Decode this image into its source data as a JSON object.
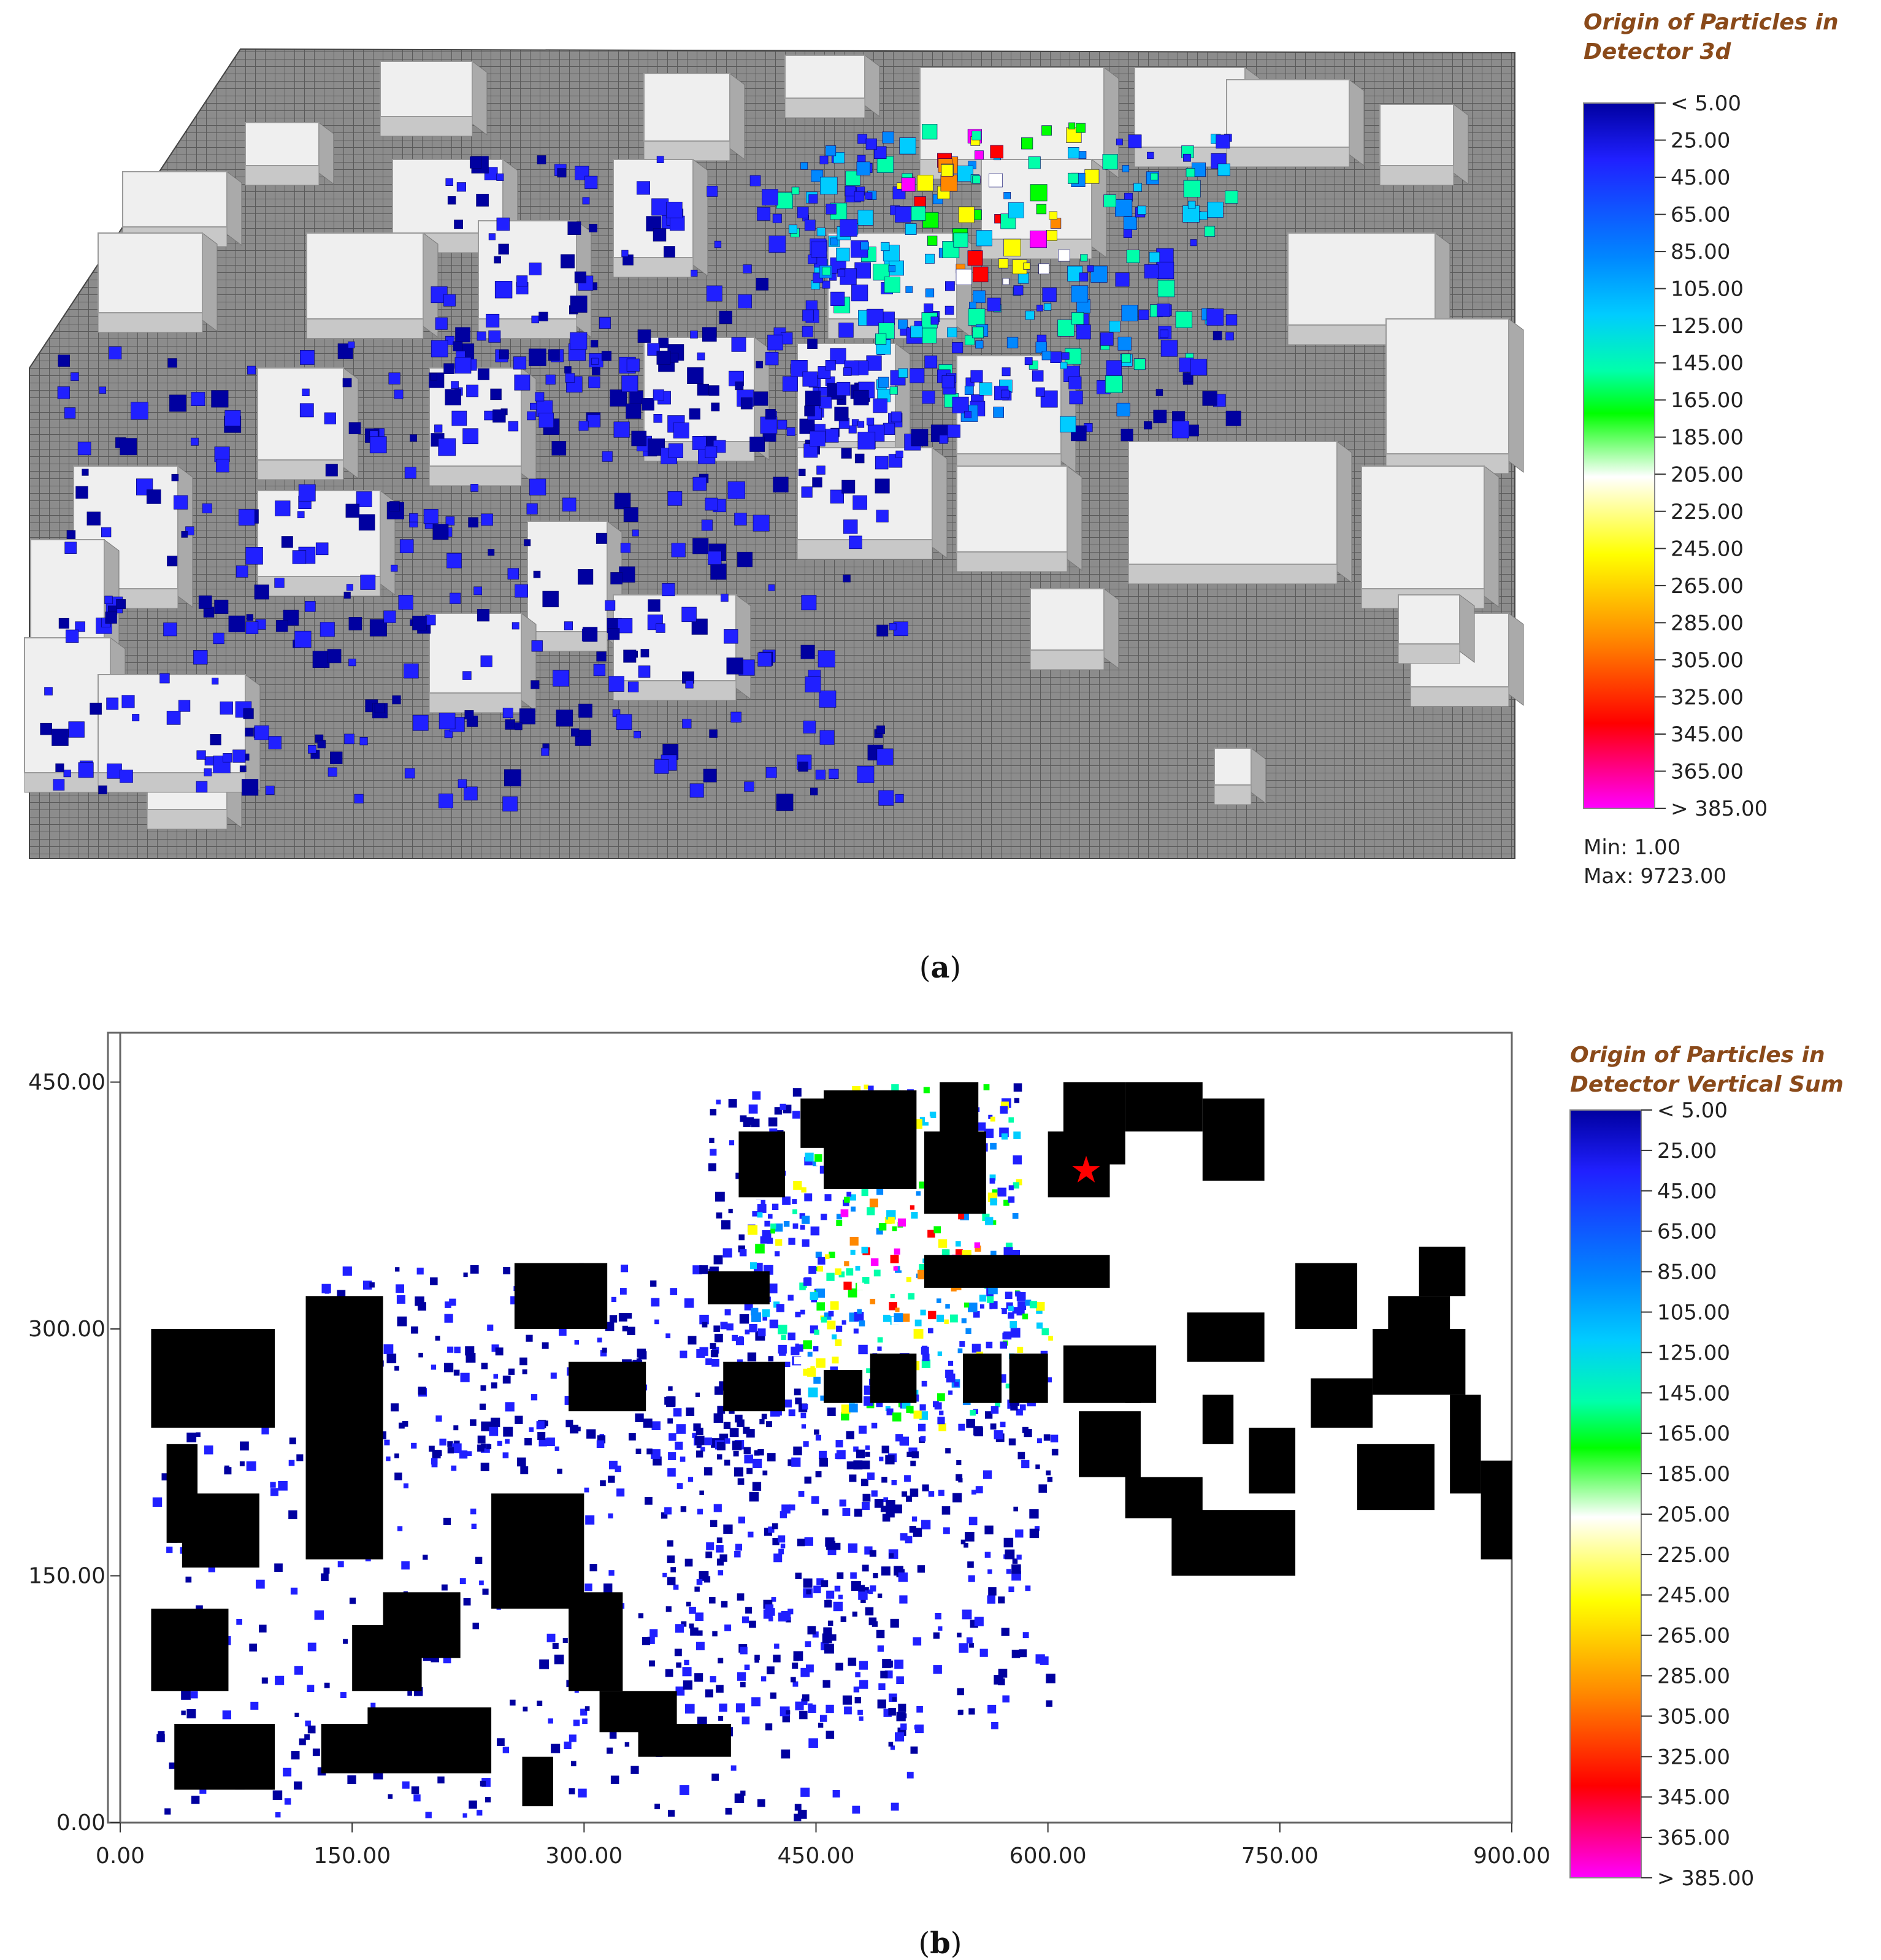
{
  "panel_a": {
    "caption_letter": "a",
    "legend": {
      "title_line1": "Origin of Particles in",
      "title_line2": "Detector 3d",
      "labels": [
        "< 5.00",
        "25.00",
        "45.00",
        "65.00",
        "85.00",
        "105.00",
        "125.00",
        "145.00",
        "165.00",
        "185.00",
        "205.00",
        "225.00",
        "245.00",
        "265.00",
        "285.00",
        "305.00",
        "325.00",
        "345.00",
        "365.00",
        "> 385.00"
      ],
      "min_text": "Min: 1.00",
      "max_text": "Max: 9723.00"
    }
  },
  "panel_b": {
    "caption_letter": "b",
    "legend": {
      "title_line1": "Origin of Particles in",
      "title_line2": "Detector Vertical Sum",
      "labels": [
        "< 5.00",
        "25.00",
        "45.00",
        "65.00",
        "85.00",
        "105.00",
        "125.00",
        "145.00",
        "165.00",
        "185.00",
        "205.00",
        "225.00",
        "245.00",
        "265.00",
        "285.00",
        "305.00",
        "325.00",
        "345.00",
        "365.00",
        "> 385.00"
      ]
    }
  },
  "colorscale": [
    "#0000a0",
    "#2020ff",
    "#0088ff",
    "#00ccff",
    "#00ffaa",
    "#00ff00",
    "#ffffff",
    "#ffff00",
    "#ff8800",
    "#ff0000",
    "#ff00ff"
  ],
  "chart_data": [
    {
      "type": "heatmap",
      "title": "Origin of Particles in Detector 3d",
      "view": "3d",
      "color_range": [
        5,
        385
      ],
      "min": 1.0,
      "max": 9723.0
    },
    {
      "type": "heatmap",
      "title": "Origin of Particles in Detector Vertical Sum",
      "view": "plan",
      "xlim": [
        0,
        900
      ],
      "ylim": [
        0,
        480
      ],
      "x_ticks": [
        "0.00",
        "150.00",
        "300.00",
        "450.00",
        "600.00",
        "750.00",
        "900.00"
      ],
      "y_ticks": [
        "0.00",
        "150.00",
        "300.00",
        "450.00"
      ],
      "x_tick_values": [
        0,
        150,
        300,
        450,
        600,
        750,
        900
      ],
      "y_tick_values": [
        0,
        150,
        300,
        450
      ],
      "buildings": [
        [
          120,
          240,
          170,
          320
        ],
        [
          120,
          160,
          170,
          240
        ],
        [
          240,
          130,
          300,
          200
        ],
        [
          20,
          240,
          100,
          300
        ],
        [
          30,
          170,
          50,
          230
        ],
        [
          40,
          155,
          90,
          200
        ],
        [
          20,
          80,
          70,
          130
        ],
        [
          35,
          20,
          100,
          60
        ],
        [
          130,
          30,
          200,
          60
        ],
        [
          150,
          80,
          195,
          120
        ],
        [
          160,
          30,
          240,
          70
        ],
        [
          170,
          100,
          220,
          140
        ],
        [
          260,
          10,
          280,
          40
        ],
        [
          290,
          80,
          325,
          140
        ],
        [
          310,
          55,
          360,
          80
        ],
        [
          335,
          40,
          395,
          60
        ],
        [
          255,
          300,
          315,
          340
        ],
        [
          290,
          250,
          340,
          280
        ],
        [
          390,
          250,
          430,
          280
        ],
        [
          400,
          380,
          430,
          420
        ],
        [
          455,
          385,
          515,
          445
        ],
        [
          455,
          255,
          480,
          275
        ],
        [
          485,
          255,
          515,
          285
        ],
        [
          545,
          255,
          570,
          285
        ],
        [
          575,
          255,
          600,
          285
        ],
        [
          610,
          255,
          670,
          290
        ],
        [
          650,
          255,
          660,
          280
        ],
        [
          380,
          315,
          420,
          335
        ],
        [
          520,
          370,
          560,
          420
        ],
        [
          600,
          380,
          640,
          420
        ],
        [
          440,
          410,
          470,
          440
        ],
        [
          480,
          410,
          505,
          445
        ],
        [
          530,
          410,
          555,
          450
        ],
        [
          520,
          325,
          640,
          345
        ],
        [
          730,
          200,
          760,
          240
        ],
        [
          770,
          240,
          810,
          270
        ],
        [
          680,
          150,
          760,
          190
        ],
        [
          700,
          230,
          720,
          260
        ],
        [
          690,
          280,
          740,
          310
        ],
        [
          760,
          300,
          800,
          340
        ],
        [
          810,
          260,
          870,
          300
        ],
        [
          820,
          290,
          860,
          320
        ],
        [
          840,
          320,
          870,
          350
        ],
        [
          800,
          190,
          850,
          230
        ],
        [
          860,
          200,
          880,
          260
        ],
        [
          880,
          160,
          900,
          220
        ],
        [
          610,
          400,
          650,
          450
        ],
        [
          650,
          420,
          700,
          450
        ],
        [
          700,
          390,
          740,
          440
        ],
        [
          620,
          210,
          660,
          250
        ],
        [
          650,
          185,
          700,
          210
        ]
      ]
    }
  ]
}
